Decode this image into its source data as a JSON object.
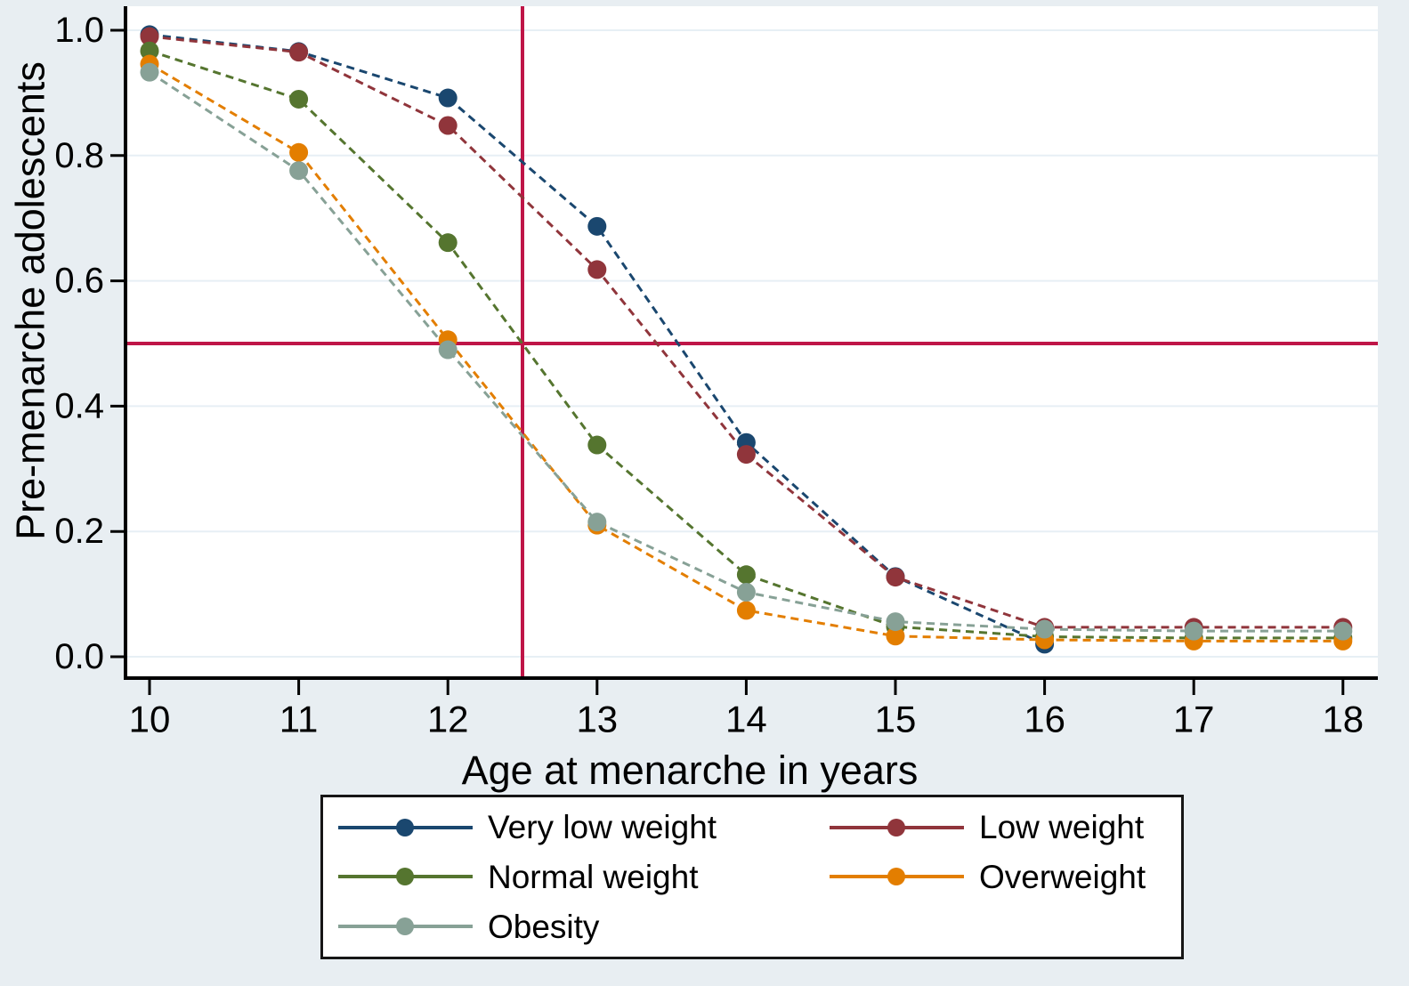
{
  "chart_data": {
    "type": "line",
    "title": "",
    "xlabel": "Age at menarche in years",
    "ylabel": "Pre-menarche adolescents",
    "x": [
      10,
      11,
      12,
      13,
      14,
      15,
      16,
      17,
      18
    ],
    "xtick_labels": [
      "10",
      "11",
      "12",
      "13",
      "14",
      "15",
      "16",
      "17",
      "18"
    ],
    "ytick_values": [
      0.0,
      0.2,
      0.4,
      0.6,
      0.8,
      1.0
    ],
    "ytick_labels": [
      "0.0",
      "0.2",
      "0.4",
      "0.6",
      "0.8",
      "1.0"
    ],
    "ylim": [
      0,
      1
    ],
    "xlim": [
      9.85,
      18.25
    ],
    "grid": "horizontal",
    "line_style": "dashed",
    "marker": "circle",
    "series": [
      {
        "name": "Very low weight",
        "color": "#1a476f",
        "values": [
          0.993,
          0.966,
          0.892,
          0.687,
          0.342,
          0.128,
          0.02,
          null,
          null
        ]
      },
      {
        "name": "Low weight",
        "color": "#90353b",
        "values": [
          0.99,
          0.965,
          0.848,
          0.618,
          0.323,
          0.127,
          0.047,
          0.047,
          0.047
        ]
      },
      {
        "name": "Normal weight",
        "color": "#55752f",
        "values": [
          0.967,
          0.89,
          0.661,
          0.338,
          0.131,
          0.048,
          0.032,
          0.03,
          0.03
        ]
      },
      {
        "name": "Overweight",
        "color": "#e37e00",
        "values": [
          0.946,
          0.805,
          0.506,
          0.21,
          0.074,
          0.033,
          0.027,
          0.025,
          0.025
        ]
      },
      {
        "name": "Obesity",
        "color": "#87a196",
        "values": [
          0.933,
          0.776,
          0.49,
          0.215,
          0.103,
          0.056,
          0.044,
          0.041,
          0.041
        ]
      }
    ],
    "reference_lines": [
      {
        "orientation": "horizontal",
        "value": 0.5,
        "color": "#bf1547"
      },
      {
        "orientation": "vertical",
        "value": 12.5,
        "color": "#bf1547"
      }
    ],
    "legend": {
      "position": "bottom",
      "columns": 2
    },
    "colors": {
      "background": "#e8eef2",
      "plot_background": "#ffffff",
      "gridline": "#e7eff5",
      "axis": "#000000"
    }
  }
}
